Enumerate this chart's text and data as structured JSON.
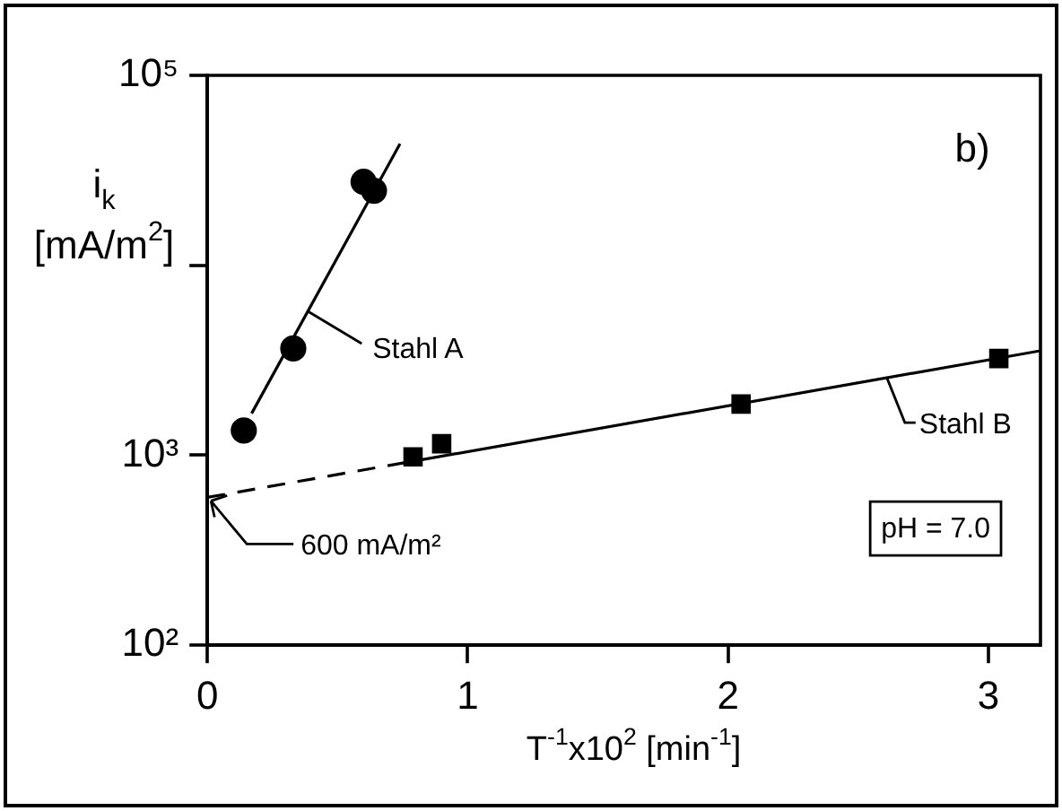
{
  "chart_data": {
    "type": "scatter",
    "xlabel": "T$^{-1}$x10$^{2}$ [min$^{-1}$]",
    "ylabel": "i$_{k}$ [mA/m$^{2}$]",
    "log": "y",
    "xlim": [
      0,
      3.2
    ],
    "xticks": [
      0,
      1,
      2,
      3
    ],
    "ylim": [
      100,
      100000
    ],
    "yticks": [
      {
        "value": 100,
        "label": "10²"
      },
      {
        "value": 1000,
        "label": "10³"
      },
      {
        "value": 10000,
        "label": null
      },
      {
        "value": 100000,
        "label": "10⁵"
      }
    ],
    "grid": false,
    "legend": false,
    "series": [
      {
        "type": "scatter",
        "marker": "circle",
        "color": "#000000",
        "x": [
          0.14,
          0.33,
          0.6,
          0.64
        ],
        "values": [
          1350,
          3650,
          27500,
          24700
        ]
      },
      {
        "type": "scatter",
        "marker": "square",
        "color": "#000000",
        "x": [
          0.79,
          0.9,
          2.05,
          3.04
        ],
        "values": [
          980,
          1150,
          1860,
          3230
        ]
      },
      {
        "type": "line",
        "name": "Stahl A",
        "marker": "none",
        "line_style": "solid",
        "color": "#000000",
        "x": [
          0.17,
          0.74
        ],
        "values": [
          1660,
          43600
        ]
      },
      {
        "type": "line",
        "marker": "none",
        "line_style": "dashed",
        "color": "#000000",
        "x": [
          0,
          0.78
        ],
        "values": [
          600,
          925
        ]
      },
      {
        "type": "line",
        "name": "Stahl B",
        "marker": "none",
        "line_style": "solid",
        "color": "#000000",
        "x": [
          0.78,
          3.2
        ],
        "values": [
          925,
          3550
        ]
      }
    ],
    "annotations": [
      {
        "text": "600 mA/m²",
        "x": 0,
        "y": 600
      },
      "b)",
      "pH = 7.0"
    ]
  }
}
